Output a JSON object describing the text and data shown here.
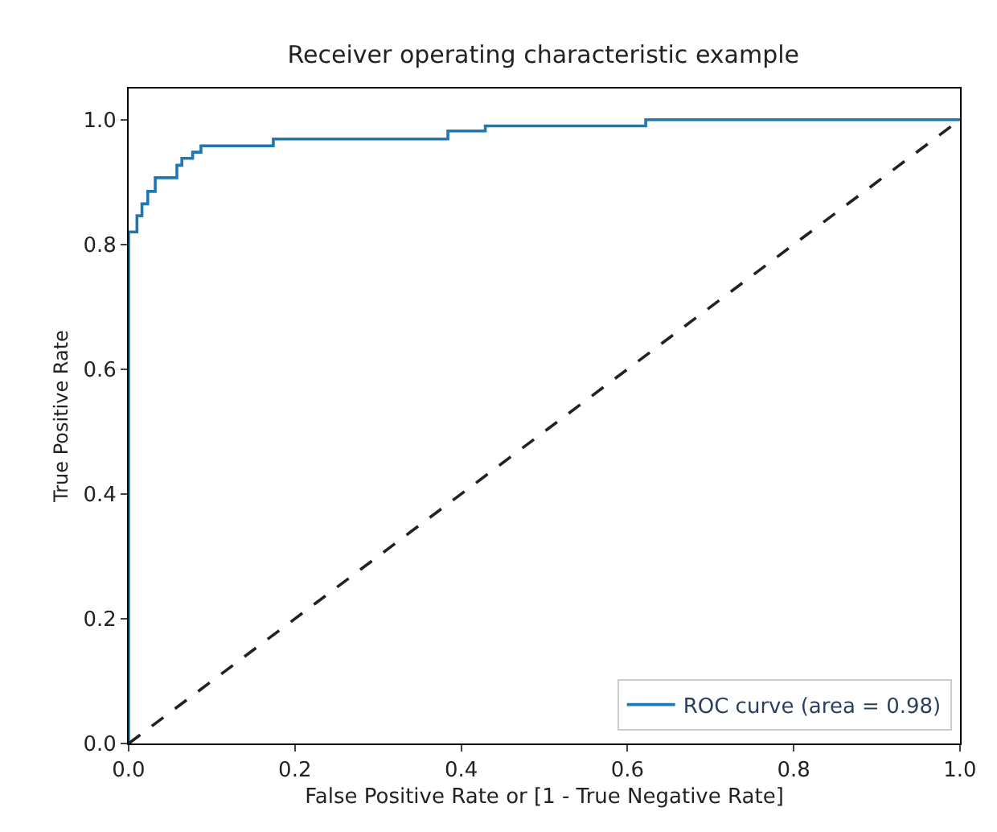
{
  "chart_data": {
    "type": "step",
    "title": "Receiver operating characteristic example",
    "xlabel": "False Positive Rate or [1 - True Negative Rate]",
    "ylabel": "True Positive Rate",
    "series": [
      {
        "name": "ROC curve (area = 0.98)",
        "color": "#1f77b4",
        "x": [
          0,
          0,
          0.01,
          0.016,
          0.023,
          0.032,
          0.058,
          0.064,
          0.077,
          0.087,
          0.174,
          0.384,
          0.429,
          0.622,
          1
        ],
        "values": [
          0,
          0.82,
          0.846,
          0.865,
          0.885,
          0.907,
          0.927,
          0.938,
          0.948,
          0.958,
          0.969,
          0.982,
          0.99,
          1,
          1
        ]
      },
      {
        "type": "line",
        "color": "#222222",
        "line_style": "dashed",
        "x": [
          0,
          1
        ],
        "values": [
          0,
          1
        ]
      }
    ],
    "xlim": [
      0,
      1
    ],
    "ylim": [
      0,
      1.05
    ],
    "xticks": [
      {
        "value": 0,
        "label": "0.0"
      },
      0.2,
      0.4,
      0.6,
      0.8,
      {
        "value": 1,
        "label": "1.0"
      }
    ],
    "yticks": [
      {
        "value": 0,
        "label": "0.0"
      },
      0.2,
      0.4,
      0.6,
      0.8,
      {
        "value": 1,
        "label": "1.0"
      }
    ],
    "legend": "bottom right"
  }
}
